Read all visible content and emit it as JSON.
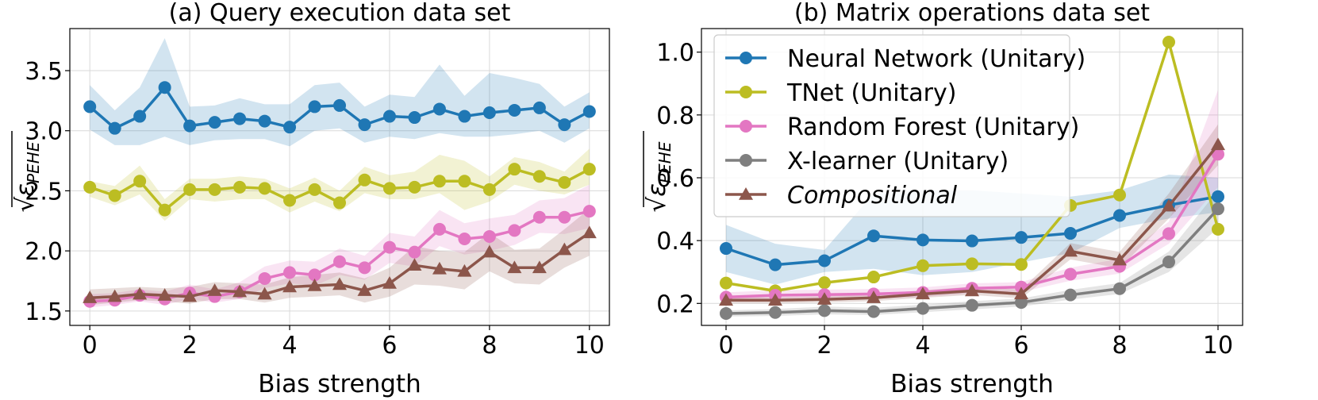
{
  "chart_data": [
    {
      "type": "line",
      "title": "(a) Query execution data set",
      "xlabel": "Bias strength",
      "ylabel": "√ε_PEHE",
      "ylabel_parts": {
        "root": "√",
        "base": "ε",
        "sub": "PEHE"
      },
      "xlim": [
        -0.4,
        10.4
      ],
      "ylim": [
        1.38,
        3.85
      ],
      "xticks": [
        0,
        2,
        4,
        6,
        8,
        10
      ],
      "xtick_labels": [
        "0",
        "2",
        "4",
        "6",
        "8",
        "10"
      ],
      "yticks": [
        1.5,
        2.0,
        2.5,
        3.0,
        3.5
      ],
      "ytick_labels": [
        "1.5",
        "2.0",
        "2.5",
        "3.0",
        "3.5"
      ],
      "grid": true,
      "legend": null,
      "x": [
        0,
        0.5,
        1,
        1.5,
        2,
        2.5,
        3,
        3.5,
        4,
        4.5,
        5,
        5.5,
        6,
        6.5,
        7,
        7.5,
        8,
        8.5,
        9,
        9.5,
        10
      ],
      "series": [
        {
          "key": "nn",
          "color": "#1f77b4",
          "marker": "circle",
          "values": [
            3.2,
            3.02,
            3.12,
            3.36,
            3.04,
            3.07,
            3.1,
            3.08,
            3.03,
            3.2,
            3.21,
            3.05,
            3.12,
            3.11,
            3.18,
            3.12,
            3.15,
            3.17,
            3.19,
            3.05,
            3.16
          ],
          "lower": [
            3.01,
            2.88,
            2.88,
            2.95,
            2.88,
            2.92,
            2.93,
            2.93,
            2.87,
            3.0,
            3.02,
            2.9,
            2.95,
            2.93,
            2.98,
            2.95,
            2.95,
            2.97,
            3.0,
            2.9,
            3.02
          ],
          "upper": [
            3.38,
            3.17,
            3.36,
            3.77,
            3.2,
            3.21,
            3.27,
            3.22,
            3.22,
            3.38,
            3.4,
            3.2,
            3.3,
            3.28,
            3.55,
            3.29,
            3.48,
            3.44,
            3.39,
            3.2,
            3.32
          ]
        },
        {
          "key": "tnet",
          "color": "#bcbd22",
          "marker": "circle",
          "values": [
            2.53,
            2.46,
            2.58,
            2.34,
            2.51,
            2.51,
            2.53,
            2.52,
            2.42,
            2.51,
            2.4,
            2.59,
            2.52,
            2.53,
            2.58,
            2.58,
            2.51,
            2.68,
            2.62,
            2.57,
            2.68
          ],
          "lower": [
            2.45,
            2.38,
            2.47,
            2.25,
            2.43,
            2.41,
            2.43,
            2.43,
            2.32,
            2.41,
            2.33,
            2.48,
            2.43,
            2.43,
            2.48,
            2.34,
            2.41,
            2.55,
            2.5,
            2.47,
            2.55
          ],
          "upper": [
            2.58,
            2.54,
            2.71,
            2.43,
            2.6,
            2.6,
            2.62,
            2.6,
            2.52,
            2.61,
            2.5,
            2.7,
            2.63,
            2.66,
            2.8,
            2.75,
            2.62,
            2.78,
            2.74,
            2.66,
            2.85
          ]
        },
        {
          "key": "rf",
          "color": "#e377c2",
          "marker": "circle",
          "values": [
            1.58,
            1.59,
            1.63,
            1.6,
            1.65,
            1.62,
            1.66,
            1.77,
            1.82,
            1.8,
            1.91,
            1.86,
            2.03,
            1.99,
            2.18,
            2.1,
            2.12,
            2.17,
            2.28,
            2.28,
            2.33
          ],
          "lower": [
            1.53,
            1.55,
            1.58,
            1.55,
            1.6,
            1.57,
            1.6,
            1.69,
            1.73,
            1.71,
            1.8,
            1.76,
            1.9,
            1.87,
            2.04,
            1.97,
            2.0,
            2.05,
            2.15,
            2.14,
            2.19
          ],
          "upper": [
            1.64,
            1.65,
            1.68,
            1.66,
            1.72,
            1.68,
            1.74,
            1.87,
            1.92,
            1.91,
            2.02,
            1.96,
            2.15,
            2.12,
            2.34,
            2.23,
            2.27,
            2.3,
            2.42,
            2.44,
            2.55
          ]
        },
        {
          "key": "comp",
          "color": "#8c564b",
          "marker": "triangle",
          "values": [
            1.61,
            1.62,
            1.64,
            1.63,
            1.62,
            1.67,
            1.66,
            1.64,
            1.7,
            1.71,
            1.72,
            1.67,
            1.73,
            1.88,
            1.85,
            1.83,
            1.99,
            1.86,
            1.86,
            2.01,
            2.15
          ],
          "lower": [
            1.55,
            1.57,
            1.59,
            1.58,
            1.56,
            1.6,
            1.6,
            1.57,
            1.61,
            1.62,
            1.63,
            1.57,
            1.62,
            1.72,
            1.71,
            1.68,
            1.83,
            1.73,
            1.72,
            1.86,
            1.96
          ],
          "upper": [
            1.68,
            1.69,
            1.7,
            1.69,
            1.7,
            1.74,
            1.73,
            1.72,
            1.78,
            1.8,
            1.82,
            1.77,
            1.86,
            2.04,
            2.0,
            1.99,
            2.15,
            2.01,
            2.02,
            2.18,
            2.35
          ]
        }
      ]
    },
    {
      "type": "line",
      "title": "(b) Matrix operations data set",
      "xlabel": "Bias strength",
      "ylabel": "√ε_PEHE",
      "ylabel_parts": {
        "root": "√",
        "base": "ε",
        "sub": "PEHE"
      },
      "xlim": [
        -0.5,
        10.5
      ],
      "ylim": [
        0.13,
        1.075
      ],
      "xticks": [
        0,
        2,
        4,
        6,
        8,
        10
      ],
      "xtick_labels": [
        "0",
        "2",
        "4",
        "6",
        "8",
        "10"
      ],
      "yticks": [
        0.2,
        0.4,
        0.6,
        0.8,
        1.0
      ],
      "ytick_labels": [
        "0.2",
        "0.4",
        "0.6",
        "0.8",
        "1.0"
      ],
      "grid": true,
      "legend": "upper-left",
      "x": [
        0,
        1,
        2,
        3,
        4,
        5,
        6,
        7,
        8,
        9,
        10
      ],
      "series": [
        {
          "key": "nn",
          "name": "Neural Network (Unitary)",
          "color": "#1f77b4",
          "marker": "circle",
          "values": [
            0.375,
            0.323,
            0.336,
            0.415,
            0.402,
            0.399,
            0.41,
            0.423,
            0.48,
            0.513,
            0.54
          ],
          "lower": [
            0.3,
            0.26,
            0.3,
            0.31,
            0.29,
            0.3,
            0.33,
            0.36,
            0.44,
            0.47,
            0.49
          ],
          "upper": [
            0.45,
            0.39,
            0.37,
            0.55,
            0.56,
            0.56,
            0.55,
            0.54,
            0.56,
            0.61,
            0.6
          ]
        },
        {
          "key": "tnet",
          "name": "TNet (Unitary)",
          "color": "#bcbd22",
          "marker": "circle",
          "values": [
            0.265,
            0.24,
            0.266,
            0.284,
            0.32,
            0.326,
            0.324,
            0.512,
            0.545,
            1.032,
            0.436
          ],
          "lower": null,
          "upper": null
        },
        {
          "key": "rf",
          "name": "Random Forest (Unitary)",
          "color": "#e377c2",
          "marker": "circle",
          "values": [
            0.22,
            0.226,
            0.228,
            0.23,
            0.235,
            0.248,
            0.252,
            0.293,
            0.318,
            0.422,
            0.675
          ],
          "lower": [
            0.205,
            0.21,
            0.212,
            0.215,
            0.22,
            0.232,
            0.236,
            0.272,
            0.295,
            0.39,
            0.57
          ],
          "upper": [
            0.235,
            0.242,
            0.244,
            0.246,
            0.251,
            0.264,
            0.268,
            0.314,
            0.342,
            0.46,
            0.88
          ]
        },
        {
          "key": "xl",
          "name": "X-learner (Unitary)",
          "color": "#7f7f7f",
          "marker": "circle",
          "values": [
            0.168,
            0.171,
            0.177,
            0.174,
            0.184,
            0.194,
            0.203,
            0.227,
            0.247,
            0.332,
            0.501
          ],
          "lower": [
            0.158,
            0.16,
            0.165,
            0.163,
            0.172,
            0.181,
            0.19,
            0.212,
            0.23,
            0.3,
            0.44
          ],
          "upper": [
            0.178,
            0.182,
            0.19,
            0.186,
            0.196,
            0.207,
            0.216,
            0.243,
            0.265,
            0.365,
            0.56
          ]
        },
        {
          "key": "comp",
          "name": "Compositional",
          "color": "#8c564b",
          "marker": "triangle",
          "italic": true,
          "values": [
            0.21,
            0.21,
            0.213,
            0.218,
            0.23,
            0.24,
            0.23,
            0.366,
            0.338,
            0.51,
            0.705
          ],
          "lower": [
            0.2,
            0.2,
            0.203,
            0.207,
            0.218,
            0.227,
            0.216,
            0.34,
            0.312,
            0.47,
            0.64
          ],
          "upper": [
            0.22,
            0.22,
            0.223,
            0.229,
            0.242,
            0.253,
            0.244,
            0.392,
            0.364,
            0.55,
            0.77
          ]
        }
      ]
    }
  ]
}
